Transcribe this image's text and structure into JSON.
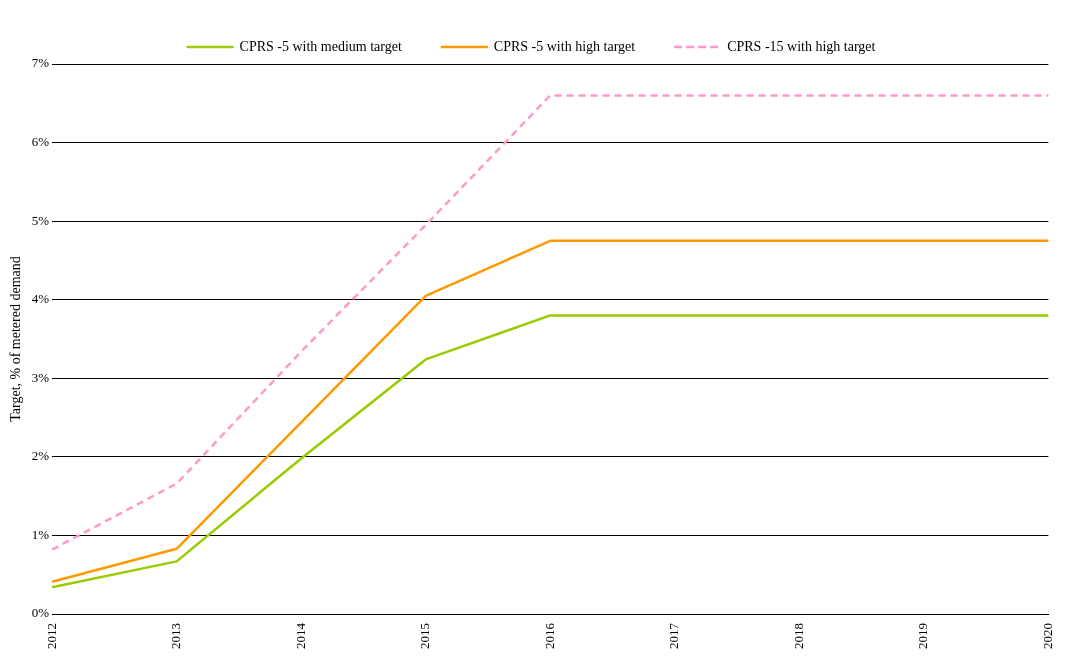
{
  "chart_data": {
    "type": "line",
    "ylabel": "Target, % of metered demand",
    "categories": [
      "2012",
      "2013",
      "2014",
      "2015",
      "2016",
      "2017",
      "2018",
      "2019",
      "2020"
    ],
    "series": [
      {
        "name": "CPRS -5 with medium target",
        "color": "#99cc00",
        "line_style": "solid",
        "values": [
          0.34,
          0.67,
          1.98,
          3.24,
          3.8,
          3.8,
          3.8,
          3.8,
          3.8
        ]
      },
      {
        "name": "CPRS -5 with high target",
        "color": "#ff9900",
        "line_style": "solid",
        "values": [
          0.41,
          0.83,
          2.44,
          4.05,
          4.75,
          4.75,
          4.75,
          4.75,
          4.75
        ]
      },
      {
        "name": "CPRS -15 with high target",
        "color": "#ff99cc",
        "line_style": "dashed",
        "values": [
          0.82,
          1.66,
          3.34,
          4.95,
          6.6,
          6.6,
          6.6,
          6.6,
          6.6
        ]
      }
    ],
    "ylim": [
      0,
      7
    ],
    "yticks": [
      {
        "value": 0,
        "label": "0%"
      },
      {
        "value": 1,
        "label": "1%"
      },
      {
        "value": 2,
        "label": "2%"
      },
      {
        "value": 3,
        "label": "3%"
      },
      {
        "value": 4,
        "label": "4%"
      },
      {
        "value": 5,
        "label": "5%"
      },
      {
        "value": 6,
        "label": "6%"
      },
      {
        "value": 7,
        "label": "7%"
      }
    ],
    "grid": "y",
    "legend": "top",
    "marker": "none"
  }
}
